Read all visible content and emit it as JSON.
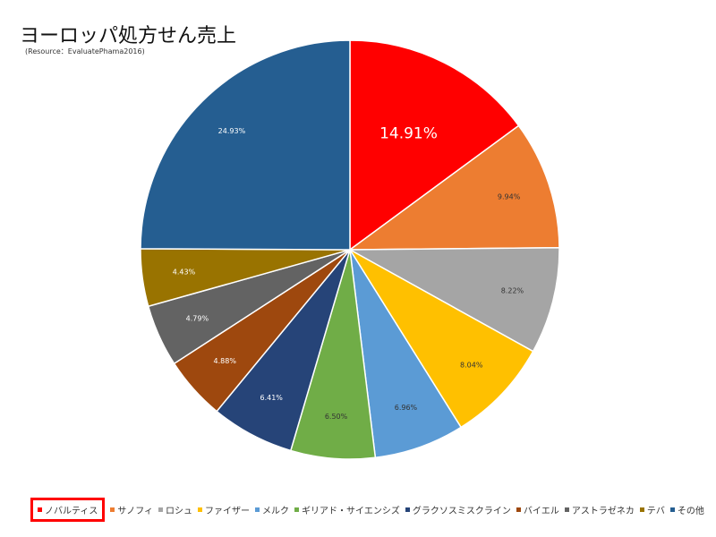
{
  "title": "ヨーロッパ処方せん売上",
  "subtitle": "(Resource：EvaluatePhama2016)",
  "chart_data": {
    "type": "pie",
    "start_angle_deg": 0,
    "direction": "clockwise",
    "labels": [
      "ノバルティス",
      "サノフィ",
      "ロシュ",
      "ファイザー",
      "メルク",
      "ギリアド・サイエンシズ",
      "グラクソスミスクライン",
      "バイエル",
      "アストラゼネカ",
      "テバ",
      "その他"
    ],
    "values": [
      14.91,
      9.94,
      8.22,
      8.04,
      6.96,
      6.5,
      6.41,
      4.88,
      4.79,
      4.43,
      24.93
    ],
    "value_labels": [
      "14.91%",
      "9.94%",
      "8.22%",
      "8.04%",
      "6.96%",
      "6.50%",
      "6.41%",
      "4.88%",
      "4.79%",
      "4.43%",
      "24.93%"
    ],
    "colors": [
      "#ff0000",
      "#ed7d31",
      "#a5a5a5",
      "#ffc000",
      "#5b9bd5",
      "#70ad47",
      "#264478",
      "#9e480e",
      "#636363",
      "#997300",
      "#255e91"
    ],
    "label_colors": [
      "#ffffff",
      "#333333",
      "#333333",
      "#333333",
      "#333333",
      "#333333",
      "#ffffff",
      "#ffffff",
      "#ffffff",
      "#ffffff",
      "#ffffff"
    ],
    "legend_position": "bottom",
    "legend_highlighted": "ノバルティス"
  }
}
